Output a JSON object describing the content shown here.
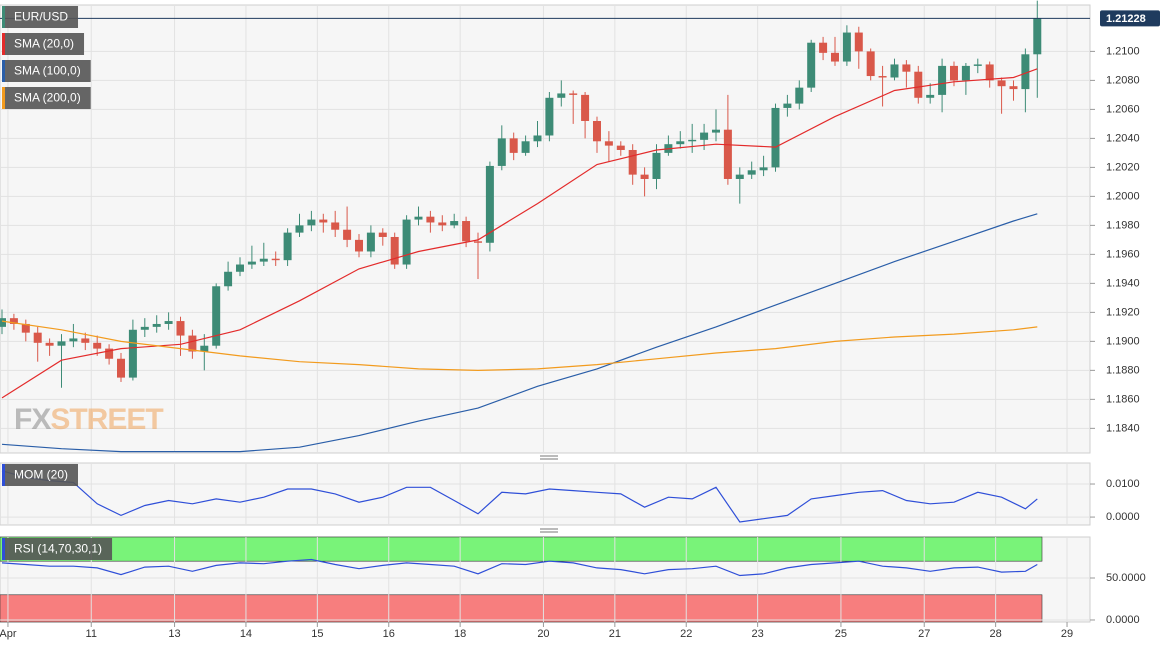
{
  "chart_data": [
    {
      "type": "candlestick",
      "name": "EUR/USD",
      "color": "#3d8b76",
      "up_color": "#3d8b76",
      "down_color": "#d9584a",
      "last_color": "#1f3b5e",
      "watermark": [
        "FX",
        "STREET"
      ],
      "ylim": [
        1.1823,
        1.2132
      ],
      "yticks": [
        {
          "value": 1.184,
          "label": "1.1840"
        },
        {
          "value": 1.186,
          "label": "1.1860"
        },
        {
          "value": 1.188,
          "label": "1.1880"
        },
        {
          "value": 1.19,
          "label": "1.1900"
        },
        {
          "value": 1.192,
          "label": "1.1920"
        },
        {
          "value": 1.194,
          "label": "1.1940"
        },
        {
          "value": 1.196,
          "label": "1.1960"
        },
        {
          "value": 1.198,
          "label": "1.1980"
        },
        {
          "value": 1.2,
          "label": "1.2000"
        },
        {
          "value": 1.202,
          "label": "1.2020"
        },
        {
          "value": 1.204,
          "label": "1.2040"
        },
        {
          "value": 1.206,
          "label": "1.2060"
        },
        {
          "value": 1.208,
          "label": "1.2080"
        },
        {
          "value": 1.21,
          "label": "1.2100"
        }
      ],
      "grid": true,
      "open": [
        1.191,
        1.1916,
        1.1912,
        1.1906,
        1.1899,
        1.1897,
        1.19,
        1.1902,
        1.1899,
        1.1895,
        1.1888,
        1.1875,
        1.1908,
        1.191,
        1.1912,
        1.1914,
        1.1904,
        1.1893,
        1.1897,
        1.1938,
        1.1948,
        1.1953,
        1.1955,
        1.1957,
        1.1956,
        1.1975,
        1.198,
        1.1984,
        1.1982,
        1.1977,
        1.197,
        1.1962,
        1.1975,
        1.1972,
        1.1953,
        1.1984,
        1.1986,
        1.1982,
        1.198,
        1.1983,
        1.1969,
        1.1968,
        1.2021,
        1.204,
        1.203,
        1.2038,
        1.2042,
        1.2068,
        1.2071,
        1.207,
        1.2052,
        1.2038,
        1.2035,
        1.2032,
        1.2015,
        1.2012,
        1.203,
        1.2036,
        1.2038,
        1.2039,
        1.2044,
        1.2046,
        1.2012,
        1.2015,
        1.2018,
        1.202,
        1.2061,
        1.2064,
        1.2075,
        1.2106,
        1.2099,
        1.2093,
        1.2113,
        1.21,
        1.2083,
        1.2082,
        1.2091,
        1.2086,
        1.2068,
        1.207,
        1.209,
        1.208,
        1.209,
        1.2091,
        1.208,
        1.2076,
        1.2074,
        1.2098
      ],
      "high": [
        1.1922,
        1.1919,
        1.1915,
        1.191,
        1.1902,
        1.1905,
        1.1912,
        1.1906,
        1.1904,
        1.1898,
        1.1892,
        1.1915,
        1.1916,
        1.1918,
        1.192,
        1.1917,
        1.1908,
        1.1905,
        1.194,
        1.1955,
        1.1958,
        1.1966,
        1.1968,
        1.1962,
        1.1978,
        1.1988,
        1.199,
        1.1988,
        1.199,
        1.1993,
        1.1974,
        1.198,
        1.1978,
        1.1975,
        1.1987,
        1.1993,
        1.199,
        1.1987,
        1.1988,
        1.1986,
        1.1975,
        1.2024,
        1.2049,
        1.2044,
        1.2042,
        1.2052,
        1.2072,
        1.208,
        1.2073,
        1.2072,
        1.2055,
        1.2045,
        1.2038,
        1.2036,
        1.202,
        1.2036,
        1.2042,
        1.2045,
        1.205,
        1.205,
        1.206,
        1.207,
        1.202,
        1.2024,
        1.2028,
        1.2064,
        1.207,
        1.208,
        1.2108,
        1.211,
        1.211,
        1.2118,
        1.2117,
        1.2102,
        1.209,
        1.2095,
        1.2094,
        1.209,
        1.2078,
        1.2095,
        1.2093,
        1.2092,
        1.2095,
        1.2093,
        1.2082,
        1.208,
        1.2102,
        1.2135
      ],
      "low": [
        1.1905,
        1.1908,
        1.19,
        1.1886,
        1.189,
        1.1868,
        1.1896,
        1.1894,
        1.189,
        1.1884,
        1.1872,
        1.1873,
        1.1903,
        1.1906,
        1.1908,
        1.189,
        1.1888,
        1.188,
        1.1895,
        1.1935,
        1.1945,
        1.195,
        1.1952,
        1.1952,
        1.1952,
        1.1972,
        1.1976,
        1.1975,
        1.1972,
        1.1965,
        1.1958,
        1.1958,
        1.1966,
        1.195,
        1.195,
        1.198,
        1.1975,
        1.1976,
        1.1978,
        1.1965,
        1.1943,
        1.1962,
        1.2018,
        1.2025,
        1.2028,
        1.2034,
        1.2038,
        1.2062,
        1.205,
        1.204,
        1.203,
        1.2024,
        1.2028,
        1.2008,
        1.2,
        1.2005,
        1.2028,
        1.2033,
        1.203,
        1.2032,
        1.2038,
        1.2008,
        1.1995,
        1.2012,
        1.2014,
        1.2017,
        1.2055,
        1.206,
        1.2072,
        1.2094,
        1.209,
        1.209,
        1.2088,
        1.208,
        1.2062,
        1.208,
        1.2075,
        1.2064,
        1.2064,
        1.2058,
        1.2076,
        1.207,
        1.2085,
        1.2075,
        1.2057,
        1.2066,
        1.2058,
        1.2068
      ],
      "close": [
        1.1916,
        1.1912,
        1.1906,
        1.1899,
        1.1897,
        1.19,
        1.1902,
        1.1899,
        1.1895,
        1.1888,
        1.1875,
        1.1908,
        1.191,
        1.1912,
        1.1914,
        1.1904,
        1.1893,
        1.1897,
        1.1938,
        1.1948,
        1.1953,
        1.1955,
        1.1957,
        1.1956,
        1.1975,
        1.198,
        1.1984,
        1.1982,
        1.1977,
        1.197,
        1.1962,
        1.1975,
        1.1972,
        1.1953,
        1.1984,
        1.1986,
        1.1982,
        1.198,
        1.1983,
        1.1969,
        1.1968,
        1.2021,
        1.204,
        1.203,
        1.2038,
        1.2042,
        1.2068,
        1.2071,
        1.207,
        1.2052,
        1.2038,
        1.2035,
        1.2032,
        1.2015,
        1.2012,
        1.203,
        1.2036,
        1.2038,
        1.2039,
        1.2044,
        1.2046,
        1.2012,
        1.2015,
        1.2018,
        1.202,
        1.2061,
        1.2064,
        1.2075,
        1.2106,
        1.2099,
        1.2093,
        1.2113,
        1.21,
        1.2083,
        1.2082,
        1.2091,
        1.2086,
        1.2068,
        1.207,
        1.209,
        1.208,
        1.209,
        1.2091,
        1.208,
        1.2076,
        1.2074,
        1.2098,
        1.21228
      ],
      "series": [
        {
          "name": "SMA (20,0)",
          "color": "#e32b2b",
          "x": [
            0,
            5,
            10,
            15,
            20,
            25,
            30,
            35,
            40,
            45,
            50,
            55,
            60,
            65,
            70,
            75,
            80,
            85,
            87
          ],
          "values": [
            1.1861,
            1.1887,
            1.1895,
            1.1898,
            1.1908,
            1.1928,
            1.195,
            1.1962,
            1.197,
            1.1995,
            1.2022,
            1.2032,
            1.2036,
            1.2034,
            1.2055,
            1.2073,
            1.2079,
            1.2082,
            1.2088
          ]
        },
        {
          "name": "SMA (100,0)",
          "color": "#2a5ea8",
          "x": [
            0,
            5,
            10,
            15,
            20,
            25,
            30,
            35,
            40,
            45,
            50,
            55,
            60,
            65,
            70,
            75,
            80,
            85,
            87
          ],
          "values": [
            1.1829,
            1.1826,
            1.1824,
            1.1824,
            1.1824,
            1.1827,
            1.1835,
            1.1845,
            1.1854,
            1.1869,
            1.1881,
            1.1896,
            1.191,
            1.1925,
            1.194,
            1.1955,
            1.1969,
            1.1983,
            1.1988
          ]
        },
        {
          "name": "SMA (200,0)",
          "color": "#f29b1e",
          "x": [
            0,
            5,
            10,
            15,
            20,
            25,
            30,
            35,
            40,
            45,
            50,
            55,
            60,
            65,
            70,
            75,
            80,
            85,
            87
          ],
          "values": [
            1.1914,
            1.1908,
            1.19,
            1.1895,
            1.189,
            1.1886,
            1.1884,
            1.1881,
            1.188,
            1.1881,
            1.1884,
            1.1888,
            1.1892,
            1.1895,
            1.19,
            1.1903,
            1.1905,
            1.1908,
            1.191
          ]
        }
      ]
    },
    {
      "type": "line",
      "ylim": [
        -0.0024,
        0.01636
      ],
      "yticks": [
        {
          "value": 0.01,
          "label": "0.0100"
        },
        {
          "value": 0,
          "label": "0.0000"
        }
      ],
      "grid": true,
      "series": [
        {
          "name": "MOM (20)",
          "color": "#2f4fd8",
          "x": [
            0,
            2,
            4,
            6,
            8,
            10,
            12,
            14,
            16,
            18,
            20,
            22,
            24,
            26,
            28,
            30,
            32,
            34,
            36,
            38,
            40,
            42,
            44,
            46,
            48,
            50,
            52,
            54,
            56,
            58,
            60,
            62,
            64,
            66,
            68,
            70,
            72,
            74,
            76,
            78,
            80,
            82,
            84,
            86,
            87
          ],
          "values": [
            0.014,
            0.012,
            0.011,
            0.0105,
            0.004,
            0.0005,
            0.0035,
            0.005,
            0.004,
            0.0055,
            0.0045,
            0.006,
            0.0085,
            0.0085,
            0.007,
            0.0045,
            0.006,
            0.009,
            0.009,
            0.005,
            0.001,
            0.0075,
            0.007,
            0.0085,
            0.008,
            0.0075,
            0.007,
            0.003,
            0.006,
            0.0055,
            0.009,
            -0.0015,
            -0.0005,
            0.0005,
            0.0055,
            0.0065,
            0.0075,
            0.008,
            0.005,
            0.004,
            0.0045,
            0.0075,
            0.006,
            0.0025,
            0.0055
          ]
        }
      ]
    },
    {
      "type": "line",
      "ylim": [
        -2.4,
        98.8
      ],
      "yticks": [
        {
          "value": 50,
          "label": "50.0000"
        },
        {
          "value": 0,
          "label": "0.0000"
        }
      ],
      "grid": true,
      "bands": {
        "upper": 70,
        "lower": 30,
        "upper_color": "#79f379",
        "lower_color": "#f77e7e"
      },
      "xlim": [
        -0.168,
        91.43
      ],
      "xticks": [
        {
          "value": 0.5,
          "label": "Apr"
        },
        {
          "value": 7.5,
          "label": "11"
        },
        {
          "value": 14.5,
          "label": "13"
        },
        {
          "value": 20.5,
          "label": "14"
        },
        {
          "value": 26.5,
          "label": "15"
        },
        {
          "value": 32.5,
          "label": "16"
        },
        {
          "value": 38.5,
          "label": "18"
        },
        {
          "value": 45.5,
          "label": "20"
        },
        {
          "value": 51.5,
          "label": "21"
        },
        {
          "value": 57.5,
          "label": "22"
        },
        {
          "value": 63.5,
          "label": "23"
        },
        {
          "value": 70.5,
          "label": "25"
        },
        {
          "value": 77.5,
          "label": "27"
        },
        {
          "value": 83.5,
          "label": "28"
        },
        {
          "value": 89.5,
          "label": "29"
        }
      ],
      "series": [
        {
          "name": "RSI (14,70,30,1)",
          "color": "#2f4fd8",
          "x": [
            0,
            2,
            4,
            6,
            8,
            10,
            12,
            14,
            16,
            18,
            20,
            22,
            24,
            26,
            28,
            30,
            32,
            34,
            36,
            38,
            40,
            42,
            44,
            46,
            48,
            50,
            52,
            54,
            56,
            58,
            60,
            62,
            64,
            66,
            68,
            70,
            72,
            74,
            76,
            78,
            80,
            82,
            84,
            86,
            87
          ],
          "values": [
            68,
            66,
            64,
            64,
            62,
            54,
            63,
            64,
            58,
            65,
            68,
            67,
            70,
            72,
            66,
            61,
            65,
            68,
            66,
            64,
            55,
            67,
            66,
            70,
            68,
            62,
            60,
            55,
            60,
            61,
            64,
            53,
            55,
            62,
            66,
            68,
            70,
            64,
            62,
            58,
            62,
            63,
            57,
            58,
            66
          ]
        }
      ]
    }
  ]
}
